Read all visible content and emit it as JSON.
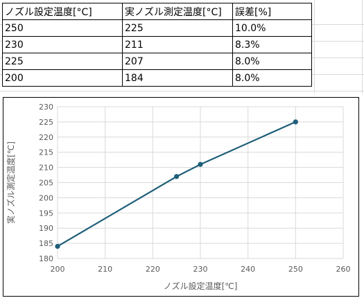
{
  "table": {
    "headers": [
      "ノズル設定温度[°C]",
      "実ノズル測定温度[°C]",
      "誤差[%]"
    ],
    "rows": [
      [
        "250",
        "225",
        "10.0%"
      ],
      [
        "230",
        "211",
        "8.3%"
      ],
      [
        "225",
        "207",
        "8.0%"
      ],
      [
        "200",
        "184",
        "8.0%"
      ]
    ]
  },
  "chart_data": {
    "type": "scatter",
    "title": "",
    "xlabel": "ノズル設定温度[℃]",
    "ylabel": "実ノズル測定温度[℃]",
    "xlim": [
      200,
      260
    ],
    "ylim": [
      180,
      230
    ],
    "xticks": [
      "200",
      "210",
      "220",
      "230",
      "240",
      "250",
      "260"
    ],
    "yticks": [
      "180",
      "185",
      "190",
      "195",
      "200",
      "205",
      "210",
      "215",
      "220",
      "225",
      "230"
    ],
    "grid": true,
    "series": [
      {
        "x": [
          200,
          225,
          230,
          250
        ],
        "y": [
          184,
          207,
          211,
          225
        ]
      }
    ],
    "colors": {
      "series": "#1f5f7a",
      "grid": "#d9d9d9",
      "text": "#595959"
    }
  }
}
